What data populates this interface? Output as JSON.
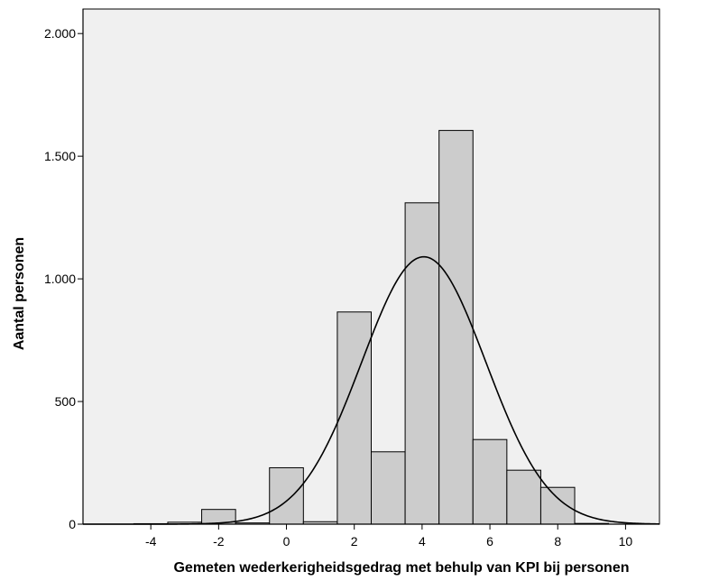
{
  "chart_data": {
    "type": "bar",
    "title": "",
    "xlabel": "Gemeten wederkerigheidsgedrag met behulp van KPI bij personen",
    "ylabel": "Aantal personen",
    "xlim": [
      -6,
      11
    ],
    "ylim": [
      0,
      2100
    ],
    "x_ticks": [
      {
        "value": -4,
        "label": "-4"
      },
      {
        "value": -2,
        "label": "-2"
      },
      {
        "value": 0,
        "label": "0"
      },
      {
        "value": 2,
        "label": "2"
      },
      {
        "value": 4,
        "label": "4"
      },
      {
        "value": 6,
        "label": "6"
      },
      {
        "value": 8,
        "label": "8"
      },
      {
        "value": 10,
        "label": "10"
      }
    ],
    "y_ticks": [
      {
        "value": 0,
        "label": "0"
      },
      {
        "value": 500,
        "label": "500"
      },
      {
        "value": 1000,
        "label": "1.000"
      },
      {
        "value": 1500,
        "label": "1.500"
      },
      {
        "value": 2000,
        "label": "2.000"
      }
    ],
    "bins": [
      {
        "x_start": -4.5,
        "x_end": -3.5,
        "count": 2
      },
      {
        "x_start": -3.5,
        "x_end": -2.5,
        "count": 8
      },
      {
        "x_start": -2.5,
        "x_end": -1.5,
        "count": 60
      },
      {
        "x_start": -1.5,
        "x_end": -0.5,
        "count": 5
      },
      {
        "x_start": -0.5,
        "x_end": 0.5,
        "count": 230
      },
      {
        "x_start": 0.5,
        "x_end": 1.5,
        "count": 10
      },
      {
        "x_start": 1.5,
        "x_end": 2.5,
        "count": 865
      },
      {
        "x_start": 2.5,
        "x_end": 3.5,
        "count": 295
      },
      {
        "x_start": 3.5,
        "x_end": 4.5,
        "count": 1310
      },
      {
        "x_start": 4.5,
        "x_end": 5.5,
        "count": 1605
      },
      {
        "x_start": 5.5,
        "x_end": 6.5,
        "count": 345
      },
      {
        "x_start": 6.5,
        "x_end": 7.5,
        "count": 220
      },
      {
        "x_start": 7.5,
        "x_end": 8.5,
        "count": 150
      },
      {
        "x_start": 8.5,
        "x_end": 9.5,
        "count": 3
      }
    ],
    "normal_curve": {
      "mean": 4.05,
      "peak": 1090,
      "sd": 1.83
    },
    "grid": false,
    "legend": "none",
    "colors": {
      "plot_background": "#f0f0f0",
      "bar_fill": "#cccccc",
      "bar_stroke": "#000000",
      "curve": "#000000"
    }
  }
}
